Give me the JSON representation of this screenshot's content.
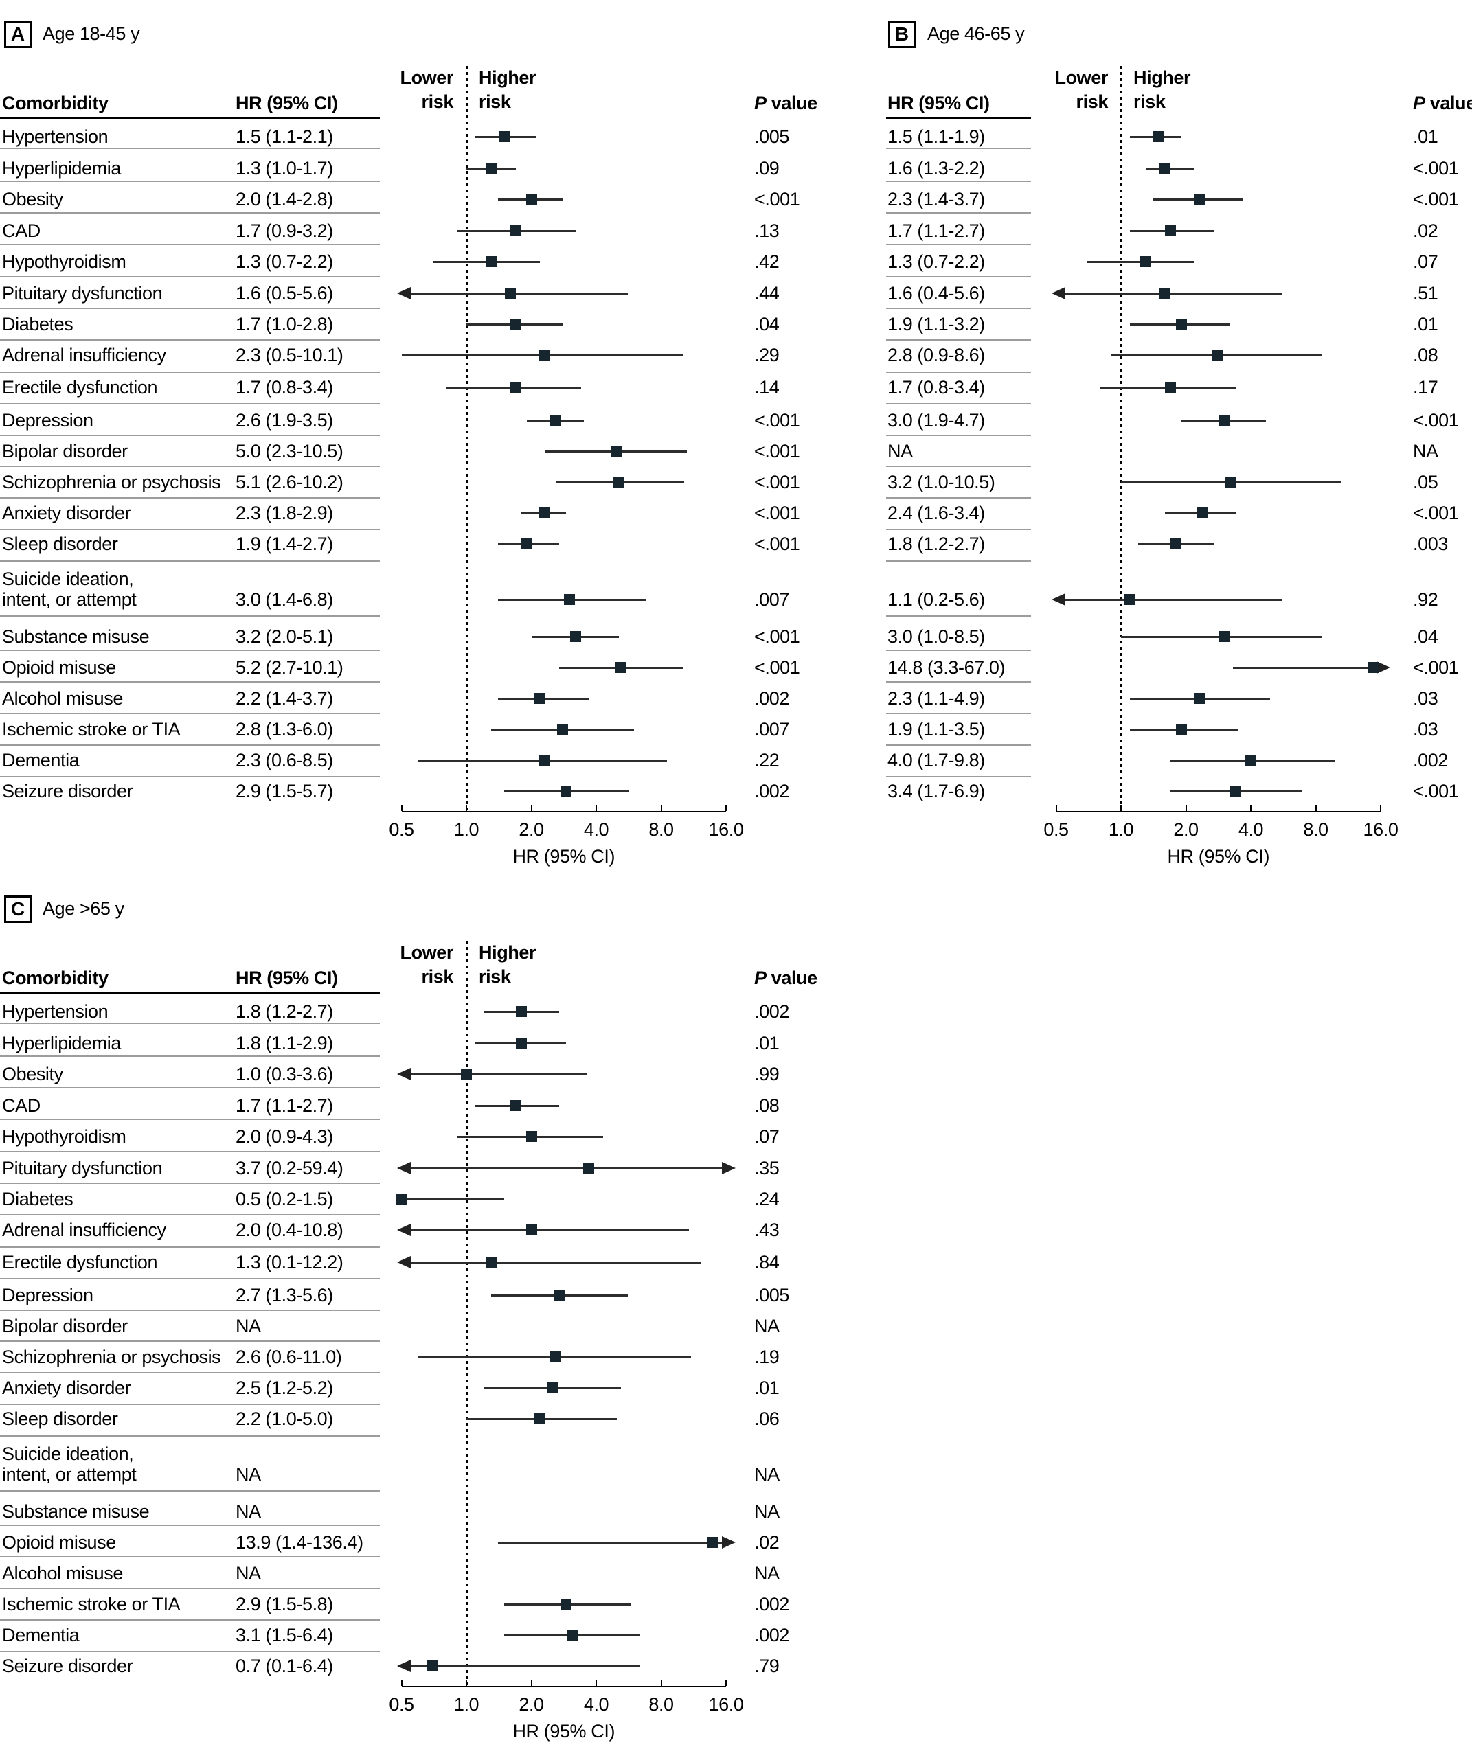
{
  "figure": {
    "background": "#ffffff",
    "ink_color": "#000000",
    "marker_color": "#17262e",
    "separator_color": "#9c9c9c"
  },
  "headers": {
    "comorbidity": "Comorbidity",
    "hr": "HR (95% CI)",
    "p_italic": "P",
    "p_rest": " value",
    "lower_risk_line1": "Lower",
    "lower_risk_line2": "risk",
    "higher_risk_line1": "Higher",
    "higher_risk_line2": "risk"
  },
  "axis": {
    "scale": "log2",
    "xlim": [
      0.5,
      16
    ],
    "ticks": [
      0.5,
      1,
      2,
      4,
      8,
      16
    ],
    "tick_labels": [
      "0.5",
      "1.0",
      "2.0",
      "4.0",
      "8.0",
      "16.0"
    ],
    "xlabel": "HR (95% CI)"
  },
  "chart_data": [
    {
      "type": "forest",
      "panel_letter": "A",
      "title": "Age 18-45 y",
      "rows": [
        {
          "label": "Hypertension",
          "hr_text": "1.5 (1.1-2.1)",
          "hr": 1.5,
          "lo": 1.1,
          "hi": 2.1,
          "p": ".005"
        },
        {
          "label": "Hyperlipidemia",
          "hr_text": "1.3 (1.0-1.7)",
          "hr": 1.3,
          "lo": 1.0,
          "hi": 1.7,
          "p": ".09"
        },
        {
          "label": "Obesity",
          "hr_text": "2.0 (1.4-2.8)",
          "hr": 2.0,
          "lo": 1.4,
          "hi": 2.8,
          "p": "<.001"
        },
        {
          "label": "CAD",
          "hr_text": "1.7 (0.9-3.2)",
          "hr": 1.7,
          "lo": 0.9,
          "hi": 3.2,
          "p": ".13"
        },
        {
          "label": "Hypothyroidism",
          "hr_text": "1.3 (0.7-2.2)",
          "hr": 1.3,
          "lo": 0.7,
          "hi": 2.2,
          "p": ".42"
        },
        {
          "label": "Pituitary dysfunction",
          "hr_text": "1.6 (0.5-5.6)",
          "hr": 1.6,
          "lo": 0.5,
          "hi": 5.6,
          "p": ".44",
          "arrow_lo": true
        },
        {
          "label": "Diabetes",
          "hr_text": "1.7 (1.0-2.8)",
          "hr": 1.7,
          "lo": 1.0,
          "hi": 2.8,
          "p": ".04"
        },
        {
          "label": "Adrenal insufficiency",
          "hr_text": "2.3 (0.5-10.1)",
          "hr": 2.3,
          "lo": 0.5,
          "hi": 10.1,
          "p": ".29"
        },
        {
          "label": "Erectile dysfunction",
          "hr_text": "1.7 (0.8-3.4)",
          "hr": 1.7,
          "lo": 0.8,
          "hi": 3.4,
          "p": ".14"
        },
        {
          "label": "Depression",
          "hr_text": "2.6 (1.9-3.5)",
          "hr": 2.6,
          "lo": 1.9,
          "hi": 3.5,
          "p": "<.001"
        },
        {
          "label": "Bipolar disorder",
          "hr_text": "5.0 (2.3-10.5)",
          "hr": 5.0,
          "lo": 2.3,
          "hi": 10.5,
          "p": "<.001"
        },
        {
          "label": "Schizophrenia or psychosis",
          "hr_text": "5.1 (2.6-10.2)",
          "hr": 5.1,
          "lo": 2.6,
          "hi": 10.2,
          "p": "<.001"
        },
        {
          "label": "Anxiety disorder",
          "hr_text": "2.3 (1.8-2.9)",
          "hr": 2.3,
          "lo": 1.8,
          "hi": 2.9,
          "p": "<.001"
        },
        {
          "label": "Sleep disorder",
          "hr_text": "1.9 (1.4-2.7)",
          "hr": 1.9,
          "lo": 1.4,
          "hi": 2.7,
          "p": "<.001"
        },
        {
          "label_lines": [
            "Suicide ideation,",
            "intent, or attempt"
          ],
          "hr_text": "3.0 (1.4-6.8)",
          "hr": 3.0,
          "lo": 1.4,
          "hi": 6.8,
          "p": ".007"
        },
        {
          "label": "Substance misuse",
          "hr_text": "3.2 (2.0-5.1)",
          "hr": 3.2,
          "lo": 2.0,
          "hi": 5.1,
          "p": "<.001"
        },
        {
          "label": "Opioid misuse",
          "hr_text": "5.2 (2.7-10.1)",
          "hr": 5.2,
          "lo": 2.7,
          "hi": 10.1,
          "p": "<.001"
        },
        {
          "label": "Alcohol misuse",
          "hr_text": "2.2 (1.4-3.7)",
          "hr": 2.2,
          "lo": 1.4,
          "hi": 3.7,
          "p": ".002"
        },
        {
          "label": "Ischemic stroke or TIA",
          "hr_text": "2.8 (1.3-6.0)",
          "hr": 2.8,
          "lo": 1.3,
          "hi": 6.0,
          "p": ".007"
        },
        {
          "label": "Dementia",
          "hr_text": "2.3 (0.6-8.5)",
          "hr": 2.3,
          "lo": 0.6,
          "hi": 8.5,
          "p": ".22"
        },
        {
          "label": "Seizure disorder",
          "hr_text": "2.9 (1.5-5.7)",
          "hr": 2.9,
          "lo": 1.5,
          "hi": 5.7,
          "p": ".002"
        }
      ]
    },
    {
      "type": "forest",
      "panel_letter": "B",
      "title": "Age 46-65 y",
      "rows": [
        {
          "hr_text": "1.5 (1.1-1.9)",
          "hr": 1.5,
          "lo": 1.1,
          "hi": 1.9,
          "p": ".01"
        },
        {
          "hr_text": "1.6 (1.3-2.2)",
          "hr": 1.6,
          "lo": 1.3,
          "hi": 2.2,
          "p": "<.001"
        },
        {
          "hr_text": "2.3 (1.4-3.7)",
          "hr": 2.3,
          "lo": 1.4,
          "hi": 3.7,
          "p": "<.001"
        },
        {
          "hr_text": "1.7 (1.1-2.7)",
          "hr": 1.7,
          "lo": 1.1,
          "hi": 2.7,
          "p": ".02"
        },
        {
          "hr_text": "1.3 (0.7-2.2)",
          "hr": 1.3,
          "lo": 0.7,
          "hi": 2.2,
          "p": ".07"
        },
        {
          "hr_text": "1.6 (0.4-5.6)",
          "hr": 1.6,
          "lo": 0.4,
          "hi": 5.6,
          "p": ".51",
          "arrow_lo": true
        },
        {
          "hr_text": "1.9 (1.1-3.2)",
          "hr": 1.9,
          "lo": 1.1,
          "hi": 3.2,
          "p": ".01"
        },
        {
          "hr_text": "2.8 (0.9-8.6)",
          "hr": 2.8,
          "lo": 0.9,
          "hi": 8.6,
          "p": ".08"
        },
        {
          "hr_text": "1.7 (0.8-3.4)",
          "hr": 1.7,
          "lo": 0.8,
          "hi": 3.4,
          "p": ".17"
        },
        {
          "hr_text": "3.0 (1.9-4.7)",
          "hr": 3.0,
          "lo": 1.9,
          "hi": 4.7,
          "p": "<.001"
        },
        {
          "hr_text": "NA",
          "p": "NA"
        },
        {
          "hr_text": "3.2 (1.0-10.5)",
          "hr": 3.2,
          "lo": 1.0,
          "hi": 10.5,
          "p": ".05"
        },
        {
          "hr_text": "2.4 (1.6-3.4)",
          "hr": 2.4,
          "lo": 1.6,
          "hi": 3.4,
          "p": "<.001"
        },
        {
          "hr_text": "1.8 (1.2-2.7)",
          "hr": 1.8,
          "lo": 1.2,
          "hi": 2.7,
          "p": ".003"
        },
        {
          "hr_text": "1.1 (0.2-5.6)",
          "hr": 1.1,
          "lo": 0.2,
          "hi": 5.6,
          "p": ".92",
          "arrow_lo": true
        },
        {
          "hr_text": "3.0 (1.0-8.5)",
          "hr": 3.0,
          "lo": 1.0,
          "hi": 8.5,
          "p": ".04"
        },
        {
          "hr_text": "14.8 (3.3-67.0)",
          "hr": 14.8,
          "lo": 3.3,
          "hi": 67.0,
          "p": "<.001",
          "arrow_hi": true
        },
        {
          "hr_text": "2.3 (1.1-4.9)",
          "hr": 2.3,
          "lo": 1.1,
          "hi": 4.9,
          "p": ".03"
        },
        {
          "hr_text": "1.9 (1.1-3.5)",
          "hr": 1.9,
          "lo": 1.1,
          "hi": 3.5,
          "p": ".03"
        },
        {
          "hr_text": "4.0 (1.7-9.8)",
          "hr": 4.0,
          "lo": 1.7,
          "hi": 9.8,
          "p": ".002"
        },
        {
          "hr_text": "3.4 (1.7-6.9)",
          "hr": 3.4,
          "lo": 1.7,
          "hi": 6.9,
          "p": "<.001"
        }
      ]
    },
    {
      "type": "forest",
      "panel_letter": "C",
      "title": "Age >65 y",
      "rows": [
        {
          "label": "Hypertension",
          "hr_text": "1.8 (1.2-2.7)",
          "hr": 1.8,
          "lo": 1.2,
          "hi": 2.7,
          "p": ".002"
        },
        {
          "label": "Hyperlipidemia",
          "hr_text": "1.8 (1.1-2.9)",
          "hr": 1.8,
          "lo": 1.1,
          "hi": 2.9,
          "p": ".01"
        },
        {
          "label": "Obesity",
          "hr_text": "1.0 (0.3-3.6)",
          "hr": 1.0,
          "lo": 0.3,
          "hi": 3.6,
          "p": ".99",
          "arrow_lo": true
        },
        {
          "label": "CAD",
          "hr_text": "1.7 (1.1-2.7)",
          "hr": 1.7,
          "lo": 1.1,
          "hi": 2.7,
          "p": ".08"
        },
        {
          "label": "Hypothyroidism",
          "hr_text": "2.0 (0.9-4.3)",
          "hr": 2.0,
          "lo": 0.9,
          "hi": 4.3,
          "p": ".07"
        },
        {
          "label": "Pituitary dysfunction",
          "hr_text": "3.7 (0.2-59.4)",
          "hr": 3.7,
          "lo": 0.2,
          "hi": 59.4,
          "p": ".35",
          "arrow_lo": true,
          "arrow_hi": true
        },
        {
          "label": "Diabetes",
          "hr_text": "0.5 (0.2-1.5)",
          "hr": 0.5,
          "lo": 0.2,
          "hi": 1.5,
          "p": ".24"
        },
        {
          "label": "Adrenal insufficiency",
          "hr_text": "2.0 (0.4-10.8)",
          "hr": 2.0,
          "lo": 0.4,
          "hi": 10.8,
          "p": ".43",
          "arrow_lo": true
        },
        {
          "label": "Erectile dysfunction",
          "hr_text": "1.3 (0.1-12.2)",
          "hr": 1.3,
          "lo": 0.1,
          "hi": 12.2,
          "p": ".84",
          "arrow_lo": true
        },
        {
          "label": "Depression",
          "hr_text": "2.7 (1.3-5.6)",
          "hr": 2.7,
          "lo": 1.3,
          "hi": 5.6,
          "p": ".005"
        },
        {
          "label": "Bipolar disorder",
          "hr_text": "NA",
          "p": "NA"
        },
        {
          "label": "Schizophrenia or psychosis",
          "hr_text": "2.6 (0.6-11.0)",
          "hr": 2.6,
          "lo": 0.6,
          "hi": 11.0,
          "p": ".19"
        },
        {
          "label": "Anxiety disorder",
          "hr_text": "2.5 (1.2-5.2)",
          "hr": 2.5,
          "lo": 1.2,
          "hi": 5.2,
          "p": ".01"
        },
        {
          "label": "Sleep disorder",
          "hr_text": "2.2 (1.0-5.0)",
          "hr": 2.2,
          "lo": 1.0,
          "hi": 5.0,
          "p": ".06"
        },
        {
          "label_lines": [
            "Suicide ideation,",
            "intent, or attempt"
          ],
          "hr_text": "NA",
          "p": "NA"
        },
        {
          "label": "Substance misuse",
          "hr_text": "NA",
          "p": "NA"
        },
        {
          "label": "Opioid misuse",
          "hr_text": "13.9 (1.4-136.4)",
          "hr": 13.9,
          "lo": 1.4,
          "hi": 136.4,
          "p": ".02",
          "arrow_hi": true
        },
        {
          "label": "Alcohol misuse",
          "hr_text": "NA",
          "p": "NA"
        },
        {
          "label": "Ischemic stroke or TIA",
          "hr_text": "2.9 (1.5-5.8)",
          "hr": 2.9,
          "lo": 1.5,
          "hi": 5.8,
          "p": ".002"
        },
        {
          "label": "Dementia",
          "hr_text": "3.1 (1.5-6.4)",
          "hr": 3.1,
          "lo": 1.5,
          "hi": 6.4,
          "p": ".002"
        },
        {
          "label": "Seizure disorder",
          "hr_text": "0.7 (0.1-6.4)",
          "hr": 0.7,
          "lo": 0.1,
          "hi": 6.4,
          "p": ".79",
          "arrow_lo": true
        }
      ]
    }
  ]
}
